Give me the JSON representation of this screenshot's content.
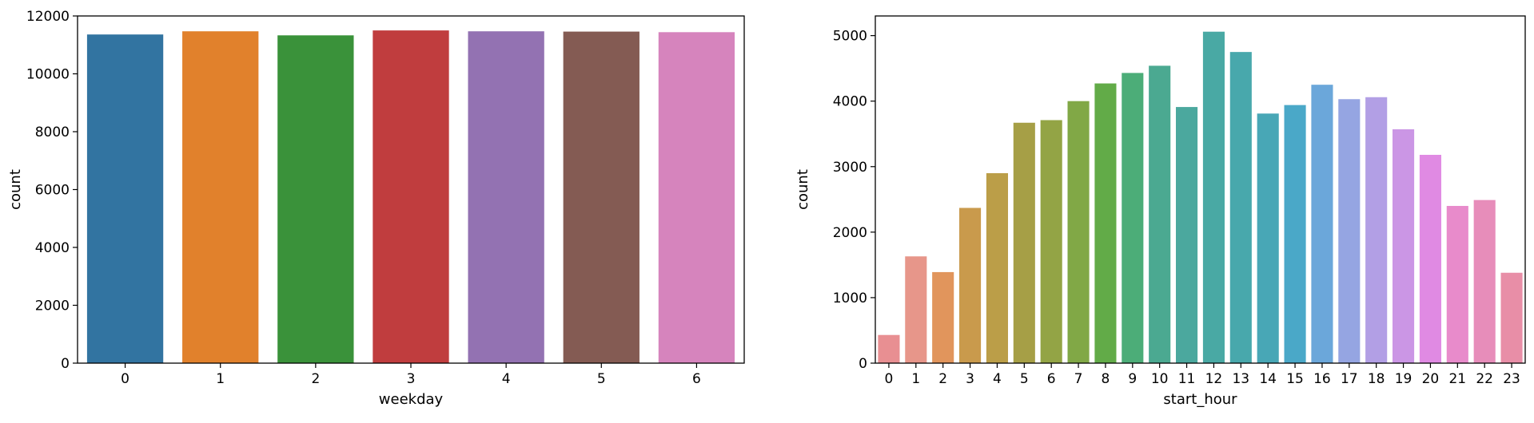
{
  "chart_data": [
    {
      "type": "bar",
      "xlabel": "weekday",
      "ylabel": "count",
      "categories": [
        "0",
        "1",
        "2",
        "3",
        "4",
        "5",
        "6"
      ],
      "values": [
        11360,
        11470,
        11330,
        11500,
        11470,
        11460,
        11440
      ],
      "ylim": [
        0,
        12000
      ],
      "yticks": [
        0,
        2000,
        4000,
        6000,
        8000,
        10000,
        12000
      ],
      "grid": false,
      "colors": [
        "#3274a1",
        "#e1812c",
        "#3a923a",
        "#c03d3e",
        "#9372b2",
        "#845b53",
        "#d684bd"
      ]
    },
    {
      "type": "bar",
      "xlabel": "start_hour",
      "ylabel": "count",
      "categories": [
        "0",
        "1",
        "2",
        "3",
        "4",
        "5",
        "6",
        "7",
        "8",
        "9",
        "10",
        "11",
        "12",
        "13",
        "14",
        "15",
        "16",
        "17",
        "18",
        "19",
        "20",
        "21",
        "22",
        "23"
      ],
      "values": [
        430,
        1630,
        1390,
        2370,
        2900,
        3670,
        3710,
        4000,
        4270,
        4430,
        4540,
        3910,
        5060,
        4750,
        3810,
        3940,
        4250,
        4030,
        4060,
        3570,
        3180,
        2400,
        2490,
        1380
      ],
      "ylim": [
        0,
        5300
      ],
      "yticks": [
        0,
        1000,
        2000,
        3000,
        4000,
        5000
      ],
      "grid": false,
      "colors": [
        "#e88f92",
        "#e7968a",
        "#e1955c",
        "#c99a4c",
        "#bb9e48",
        "#a69f46",
        "#93a445",
        "#81a846",
        "#62ab48",
        "#4cad78",
        "#4ba991",
        "#4ba89e",
        "#49a9a4",
        "#48a8ac",
        "#48a7b6",
        "#4aa8c8",
        "#6ba7da",
        "#95a5e2",
        "#b29fe5",
        "#cb96e5",
        "#e08ae3",
        "#e88bcb",
        "#e78dba",
        "#e88ea7"
      ]
    }
  ]
}
